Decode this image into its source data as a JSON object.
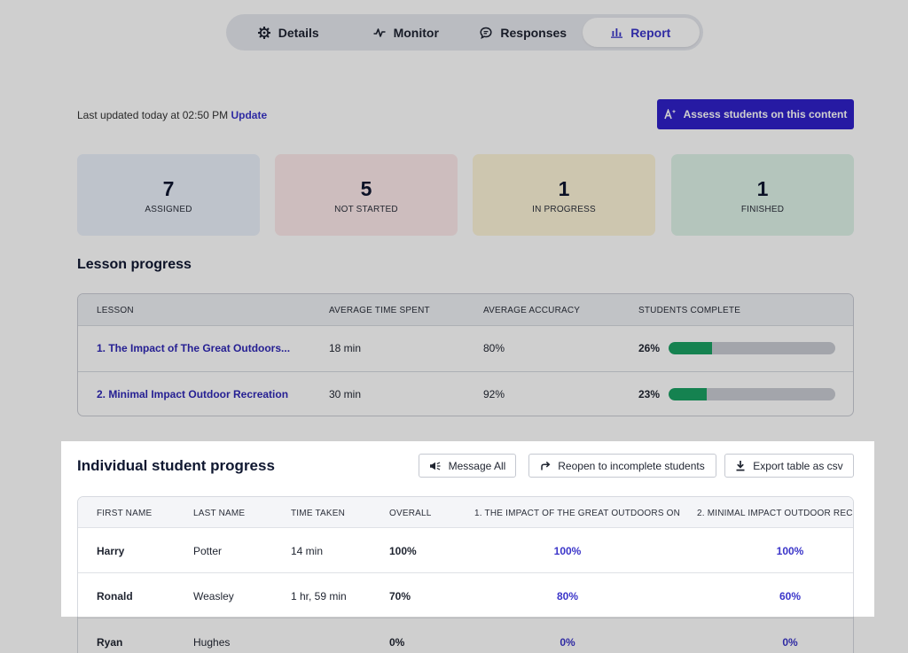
{
  "tabs": [
    {
      "label": "Details",
      "icon": "gear-icon"
    },
    {
      "label": "Monitor",
      "icon": "activity-icon"
    },
    {
      "label": "Responses",
      "icon": "chat-icon"
    },
    {
      "label": "Report",
      "icon": "bar-chart-icon",
      "active": true
    }
  ],
  "header": {
    "last_updated": "Last updated today at 02:50 PM",
    "update_link": "Update",
    "assess_button": "Assess students on this content"
  },
  "stats": [
    {
      "value": "7",
      "label": "ASSIGNED",
      "color": "#eaf0fb"
    },
    {
      "value": "5",
      "label": "NOT STARTED",
      "color": "#fde9ea"
    },
    {
      "value": "1",
      "label": "IN PROGRESS",
      "color": "#fdf4d8"
    },
    {
      "value": "1",
      "label": "FINISHED",
      "color": "#def3e8"
    }
  ],
  "lesson_progress": {
    "title": "Lesson progress",
    "columns": [
      "LESSON",
      "AVERAGE TIME SPENT",
      "AVERAGE ACCURACY",
      "STUDENTS COMPLETE"
    ],
    "rows": [
      {
        "lesson": "1. The Impact of The Great Outdoors...",
        "time": "18 min",
        "accuracy": "80%",
        "complete": "26%",
        "complete_fraction": 0.26
      },
      {
        "lesson": "2. Minimal Impact Outdoor Recreation",
        "time": "30 min",
        "accuracy": "92%",
        "complete": "23%",
        "complete_fraction": 0.23
      }
    ]
  },
  "individual": {
    "title": "Individual student progress",
    "message_all": "Message All",
    "reopen": "Reopen to incomplete students",
    "export": "Export table as csv",
    "columns": [
      "FIRST NAME",
      "LAST NAME",
      "TIME TAKEN",
      "OVERALL",
      "1. THE IMPACT OF THE GREAT OUTDOORS ON (",
      "2. MINIMAL IMPACT OUTDOOR REC"
    ],
    "rows": [
      {
        "first": "Harry",
        "last": "Potter",
        "time": "14 min",
        "overall": "100%",
        "l1": "100%",
        "l2": "100%"
      },
      {
        "first": "Ronald",
        "last": "Weasley",
        "time": "1 hr, 59 min",
        "overall": "70%",
        "l1": "80%",
        "l2": "60%"
      },
      {
        "first": "Ryan",
        "last": "Hughes",
        "time": "",
        "overall": "0%",
        "l1": "0%",
        "l2": "0%"
      }
    ]
  },
  "colors": {
    "accent": "#3b35c9",
    "primary_button": "#2f20c9",
    "progress_fill": "#1aa163",
    "progress_track": "#c9ccd3"
  }
}
